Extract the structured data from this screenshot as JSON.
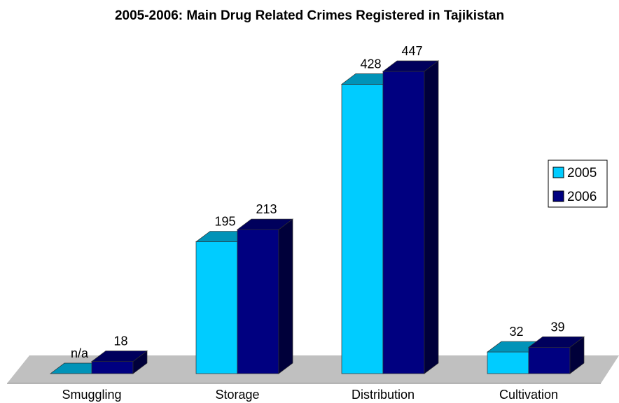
{
  "chart_data": {
    "type": "bar",
    "title": "2005-2006: Main Drug Related Crimes Registered in Tajikistan",
    "categories": [
      "Smuggling",
      "Storage",
      "Distribution",
      "Cultivation"
    ],
    "series": [
      {
        "name": "2005",
        "values": [
          null,
          195,
          428,
          32
        ],
        "labels": [
          "n/a",
          "195",
          "428",
          "32"
        ],
        "color": "#00ccff"
      },
      {
        "name": "2006",
        "values": [
          18,
          213,
          447,
          39
        ],
        "labels": [
          "18",
          "213",
          "447",
          "39"
        ],
        "color": "#000080"
      }
    ],
    "xlabel": "",
    "ylabel": "",
    "ylim": [
      0,
      447
    ],
    "three_d": true,
    "grid": false,
    "legend_position": "right",
    "floor_color": "#c0c0c0"
  }
}
